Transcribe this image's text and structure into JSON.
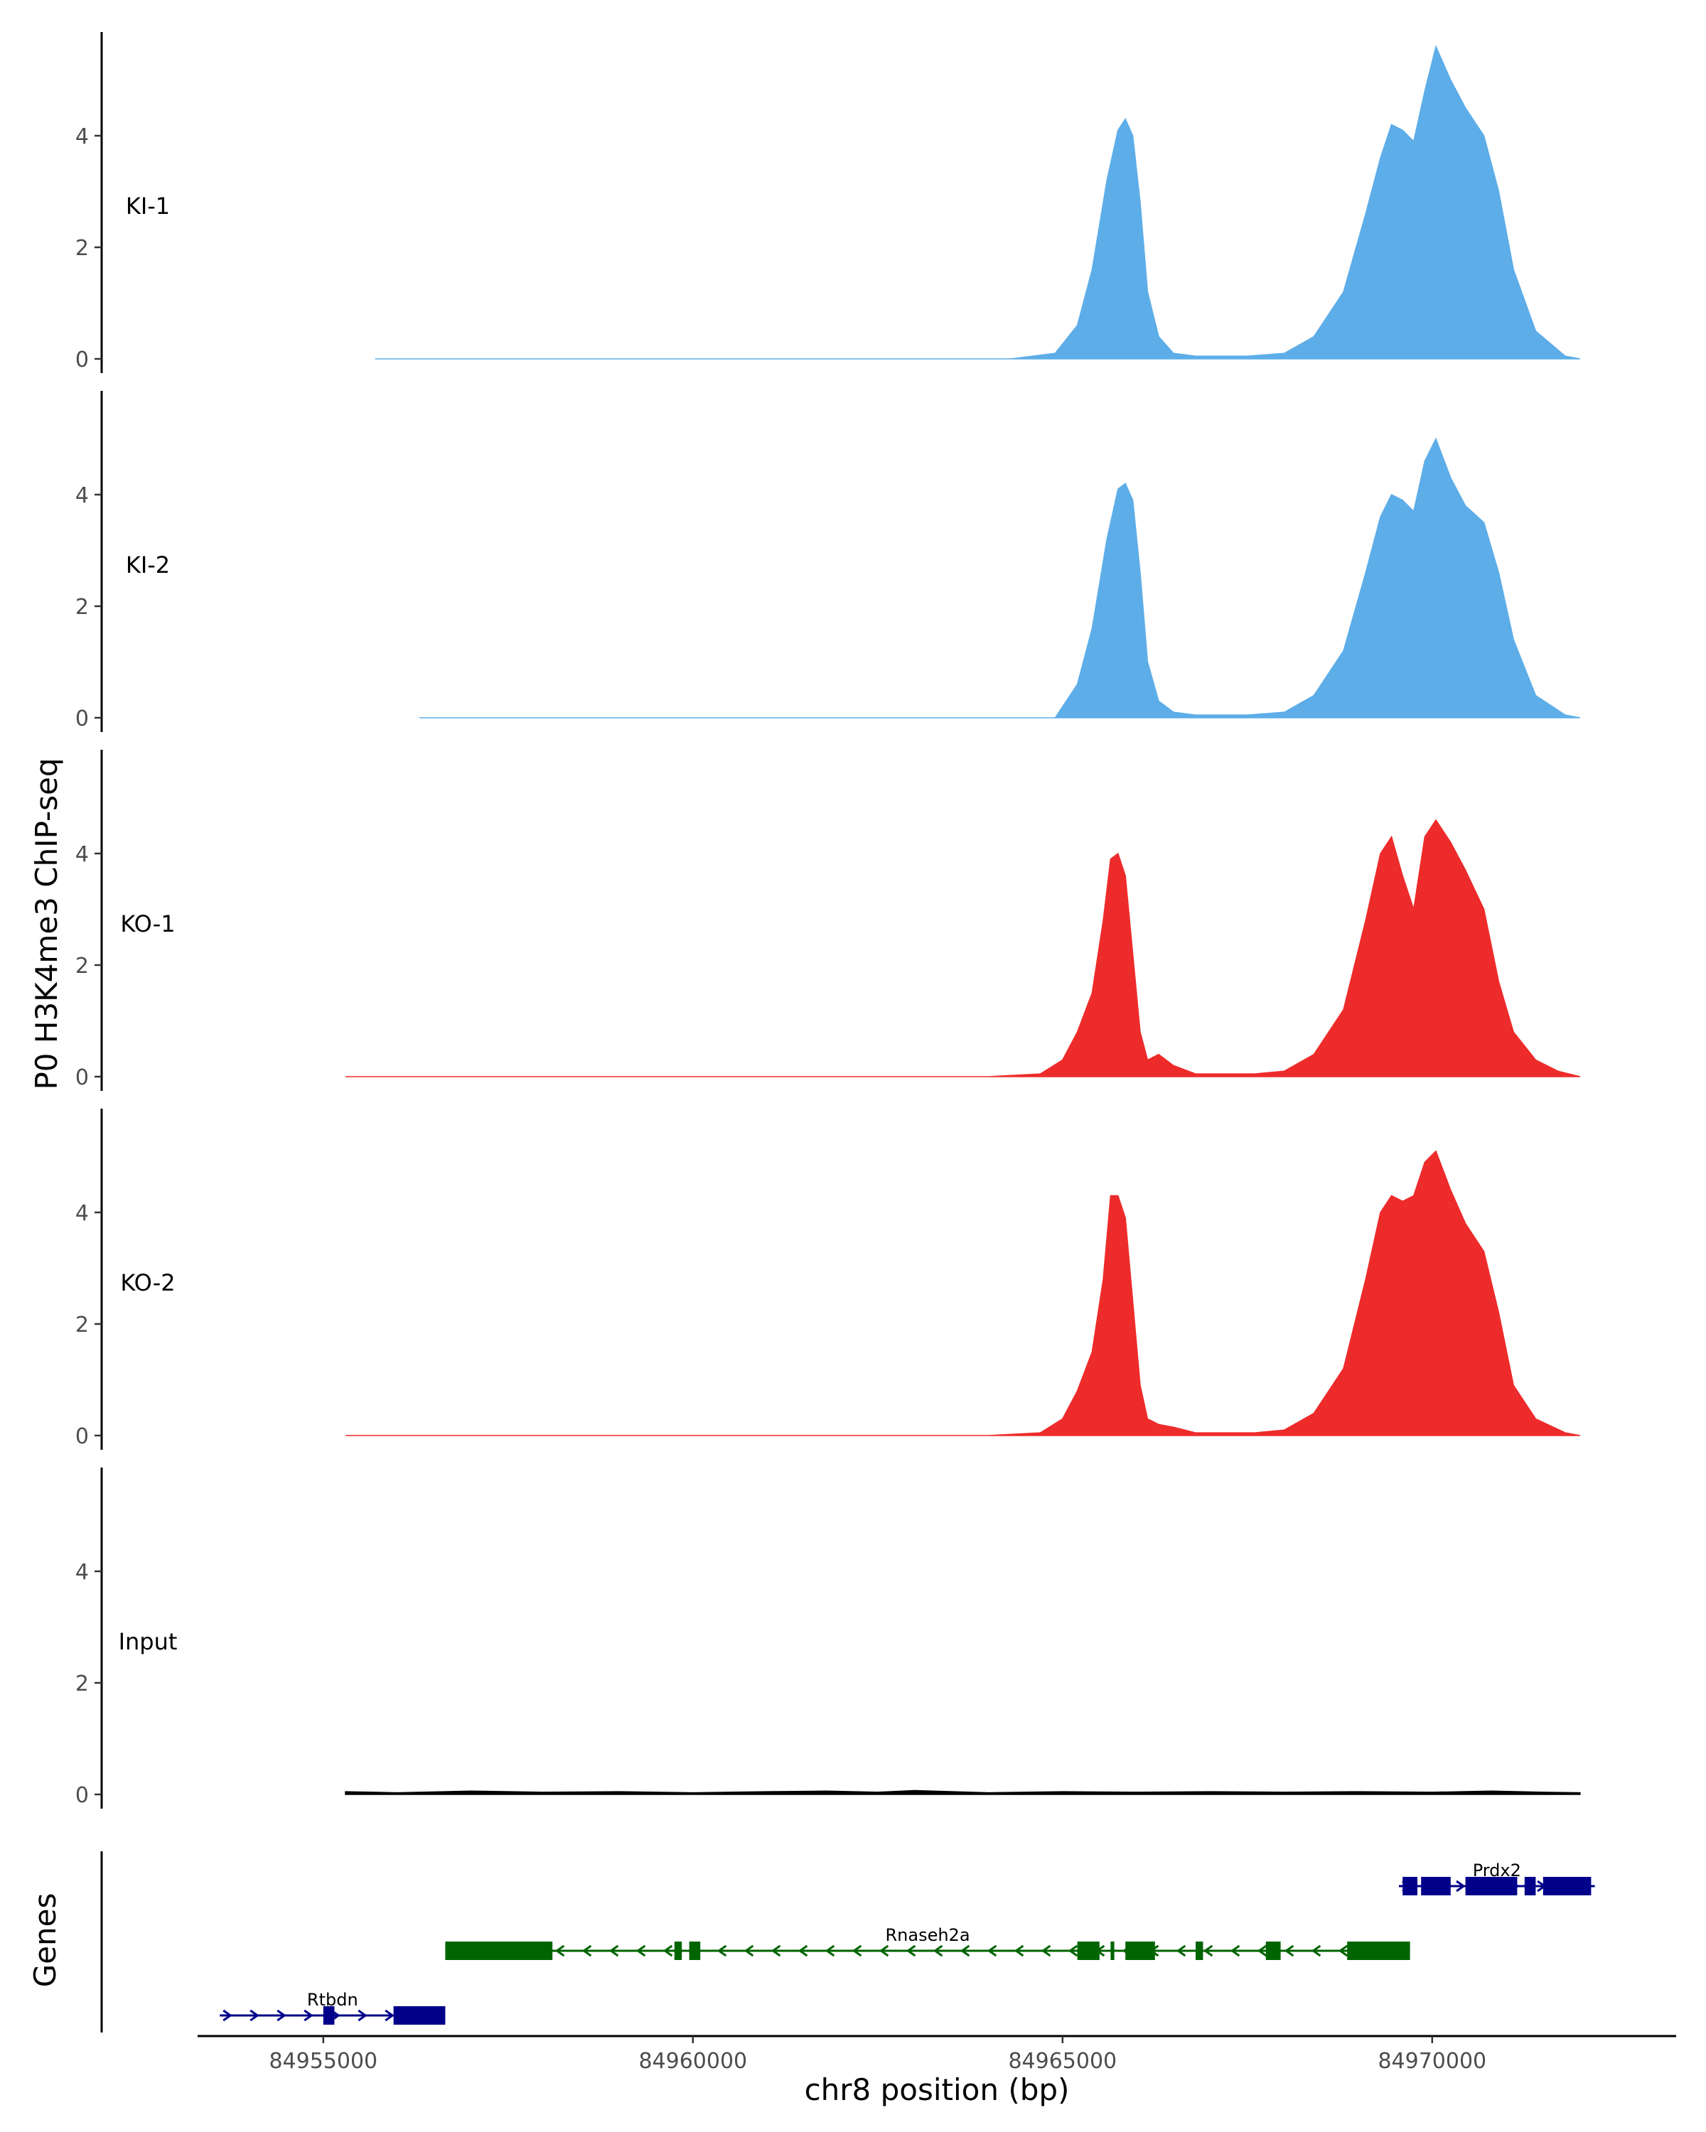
{
  "chart_data": {
    "type": "area",
    "ylabel": "P0 H3K4me3 ChIP-seq",
    "xlabel": "chr8 position (bp)",
    "xlim": [
      84953300,
      84973300
    ],
    "ylim": [
      0,
      5.8
    ],
    "x_ticks": [
      84955000,
      84960000,
      84965000,
      84970000
    ],
    "x_tick_labels": [
      "84955000",
      "84960000",
      "84965000",
      "84970000"
    ],
    "y_ticks": [
      0,
      2,
      4
    ],
    "y_tick_labels": [
      "0",
      "2",
      "4"
    ],
    "tracks": [
      {
        "name": "KI-1",
        "color": "#5dade8",
        "x": [
          84955700,
          84956200,
          84956800,
          84957400,
          84958200,
          84959000,
          84960200,
          84961200,
          84962500,
          84963400,
          84964300,
          84964900,
          84965200,
          84965400,
          84965600,
          84965750,
          84965850,
          84965950,
          84966050,
          84966150,
          84966300,
          84966500,
          84966800,
          84967500,
          84968000,
          84968400,
          84968800,
          84969100,
          84969300,
          84969450,
          84969600,
          84969750,
          84969900,
          84970050,
          84970250,
          84970450,
          84970700,
          84970900,
          84971100,
          84971400,
          84971800,
          84972000
        ],
        "y": [
          0,
          0,
          0,
          0,
          0,
          0,
          0,
          0,
          0,
          0,
          0,
          0.1,
          0.6,
          1.6,
          3.2,
          4.1,
          4.3,
          4.0,
          2.8,
          1.2,
          0.4,
          0.1,
          0.05,
          0.05,
          0.1,
          0.4,
          1.2,
          2.6,
          3.6,
          4.2,
          4.1,
          3.9,
          4.8,
          5.6,
          5.0,
          4.5,
          4.0,
          3.0,
          1.6,
          0.5,
          0.05,
          0
        ]
      },
      {
        "name": "KI-2",
        "color": "#5dade8",
        "x": [
          84956300,
          84957000,
          84958000,
          84959000,
          84960000,
          84961000,
          84962000,
          84963000,
          84964000,
          84964900,
          84965200,
          84965400,
          84965600,
          84965750,
          84965850,
          84965950,
          84966050,
          84966150,
          84966300,
          84966500,
          84966800,
          84967500,
          84968000,
          84968400,
          84968800,
          84969100,
          84969300,
          84969450,
          84969600,
          84969750,
          84969900,
          84970050,
          84970250,
          84970450,
          84970700,
          84970900,
          84971100,
          84971400,
          84971800,
          84972000
        ],
        "y": [
          0,
          0,
          0,
          0,
          0,
          0,
          0,
          0,
          0,
          0,
          0.6,
          1.6,
          3.2,
          4.1,
          4.2,
          3.9,
          2.6,
          1.0,
          0.3,
          0.1,
          0.05,
          0.05,
          0.1,
          0.4,
          1.2,
          2.6,
          3.6,
          4.0,
          3.9,
          3.7,
          4.6,
          5.0,
          4.3,
          3.8,
          3.5,
          2.6,
          1.4,
          0.4,
          0.05,
          0
        ]
      },
      {
        "name": "KO-1",
        "color": "#ee2b2b",
        "x": [
          84955300,
          84956200,
          84957000,
          84958000,
          84959000,
          84960000,
          84961000,
          84962000,
          84963000,
          84964000,
          84964700,
          84965000,
          84965200,
          84965400,
          84965550,
          84965650,
          84965750,
          84965850,
          84965950,
          84966050,
          84966150,
          84966300,
          84966500,
          84966800,
          84967200,
          84967600,
          84968000,
          84968400,
          84968800,
          84969100,
          84969300,
          84969450,
          84969600,
          84969750,
          84969900,
          84970050,
          84970250,
          84970450,
          84970700,
          84970900,
          84971100,
          84971400,
          84971700,
          84972000
        ],
        "y": [
          0,
          0,
          0,
          0,
          0,
          0,
          0,
          0,
          0,
          0,
          0.05,
          0.3,
          0.8,
          1.5,
          2.8,
          3.9,
          4.0,
          3.6,
          2.2,
          0.8,
          0.3,
          0.4,
          0.2,
          0.05,
          0.05,
          0.05,
          0.1,
          0.4,
          1.2,
          2.8,
          4.0,
          4.3,
          3.6,
          3.0,
          4.3,
          4.6,
          4.2,
          3.7,
          3.0,
          1.7,
          0.8,
          0.3,
          0.1,
          0
        ]
      },
      {
        "name": "KO-2",
        "color": "#ee2b2b",
        "x": [
          84955300,
          84956200,
          84957200,
          84958200,
          84959000,
          84960000,
          84961000,
          84962000,
          84963000,
          84964000,
          84964700,
          84965000,
          84965200,
          84965400,
          84965550,
          84965650,
          84965750,
          84965850,
          84965950,
          84966050,
          84966150,
          84966300,
          84966500,
          84966800,
          84967200,
          84967600,
          84968000,
          84968400,
          84968800,
          84969100,
          84969300,
          84969450,
          84969600,
          84969750,
          84969900,
          84970050,
          84970250,
          84970450,
          84970700,
          84970900,
          84971100,
          84971400,
          84971800,
          84972000
        ],
        "y": [
          0,
          0,
          0,
          0,
          0,
          0,
          0,
          0,
          0,
          0,
          0.05,
          0.3,
          0.8,
          1.5,
          2.8,
          4.3,
          4.3,
          3.9,
          2.4,
          0.9,
          0.3,
          0.2,
          0.15,
          0.05,
          0.05,
          0.05,
          0.1,
          0.4,
          1.2,
          2.8,
          4.0,
          4.3,
          4.2,
          4.3,
          4.9,
          5.1,
          4.4,
          3.8,
          3.3,
          2.2,
          0.9,
          0.3,
          0.05,
          0
        ]
      },
      {
        "name": "Input",
        "color": "#000000",
        "x": [
          84955300,
          84956000,
          84957000,
          84958000,
          84959000,
          84960000,
          84961000,
          84961800,
          84962500,
          84963000,
          84964000,
          84965000,
          84966000,
          84967000,
          84968000,
          84969000,
          84970000,
          84970800,
          84971500,
          84972000
        ],
        "y": [
          0.05,
          0.03,
          0.06,
          0.04,
          0.05,
          0.03,
          0.05,
          0.06,
          0.04,
          0.07,
          0.03,
          0.05,
          0.04,
          0.05,
          0.04,
          0.05,
          0.04,
          0.06,
          0.04,
          0.03
        ]
      }
    ],
    "genes_track": {
      "label": "Genes",
      "genes": [
        {
          "name": "Prdx2",
          "strand": "+",
          "color": "#00008b",
          "row": 0,
          "start": 84969550,
          "end": 84972200,
          "exons": [
            [
              84969600,
              84969800
            ],
            [
              84969850,
              84970250
            ],
            [
              84970450,
              84971150
            ],
            [
              84971250,
              84971400
            ],
            [
              84971500,
              84972150
            ]
          ]
        },
        {
          "name": "Rnaseh2a",
          "strand": "-",
          "color": "#006400",
          "row": 1,
          "start": 84956650,
          "end": 84969700,
          "exons": [
            [
              84956650,
              84958100
            ],
            [
              84959750,
              84959850
            ],
            [
              84959950,
              84960100
            ],
            [
              84965200,
              84965500
            ],
            [
              84965650,
              84965700
            ],
            [
              84965850,
              84966250
            ],
            [
              84966800,
              84966900
            ],
            [
              84967750,
              84967950
            ],
            [
              84968850,
              84969700
            ]
          ]
        },
        {
          "name": "Rtbdn",
          "strand": "+",
          "color": "#00008b",
          "row": 2,
          "start": 84953600,
          "end": 84956650,
          "exons": [
            [
              84955000,
              84955150
            ],
            [
              84955950,
              84956650
            ]
          ]
        }
      ]
    }
  }
}
